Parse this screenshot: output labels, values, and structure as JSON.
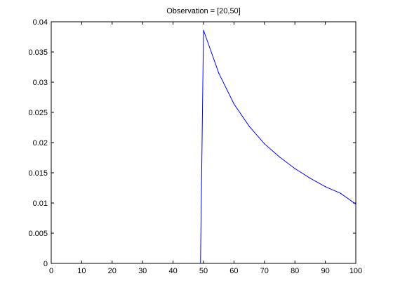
{
  "chart_data": {
    "type": "line",
    "title": "Observation = [20,50]",
    "xlabel": "",
    "ylabel": "",
    "xlim": [
      0,
      100
    ],
    "ylim": [
      0,
      0.04
    ],
    "grid": false,
    "x_ticks": [
      0,
      10,
      20,
      30,
      40,
      50,
      60,
      70,
      80,
      90,
      100
    ],
    "x_tick_labels": [
      "0",
      "10",
      "20",
      "30",
      "40",
      "50",
      "60",
      "70",
      "80",
      "90",
      "100"
    ],
    "y_ticks": [
      0,
      0.005,
      0.01,
      0.015,
      0.02,
      0.025,
      0.03,
      0.035,
      0.04
    ],
    "y_tick_labels": [
      "0",
      "0.005",
      "0.01",
      "0.015",
      "0.02",
      "0.025",
      "0.03",
      "0.035",
      "0.04"
    ],
    "series": [
      {
        "color": "#0000ff",
        "x": [
          49,
          50,
          55,
          60,
          65,
          70,
          75,
          80,
          85,
          90,
          95,
          100
        ],
        "y": [
          0,
          0.0386,
          0.0315,
          0.0264,
          0.0227,
          0.0198,
          0.0176,
          0.0157,
          0.0141,
          0.0127,
          0.0116,
          0.0098
        ]
      }
    ]
  }
}
